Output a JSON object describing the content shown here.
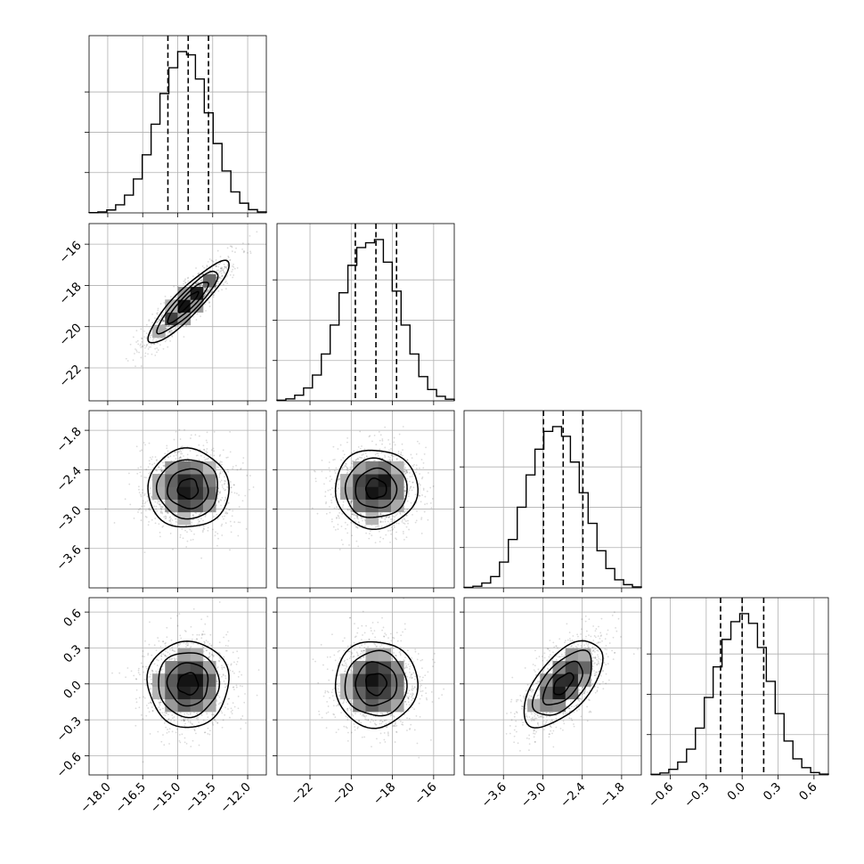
{
  "chart_data": {
    "type": "corner",
    "grid": true,
    "parameters": [
      {
        "range": [
          -18.8,
          -11.2
        ],
        "ticks": [
          -18.0,
          -16.5,
          -15.0,
          -13.5,
          -12.0
        ],
        "tick_labels": [
          "−18.0",
          "−16.5",
          "−15.0",
          "−13.5",
          "−12.0"
        ],
        "mean": -14.55,
        "std": 0.87,
        "quantiles": [
          -15.42,
          -14.55,
          -13.68
        ]
      },
      {
        "range": [
          -23.6,
          -15.0
        ],
        "ticks": [
          -22,
          -20,
          -18,
          -16
        ],
        "tick_labels": [
          "−22",
          "−20",
          "−18",
          "−16"
        ],
        "mean": -18.8,
        "std": 1.0,
        "quantiles": [
          -19.8,
          -18.8,
          -17.8
        ]
      },
      {
        "range": [
          -4.2,
          -1.5
        ],
        "ticks": [
          -3.6,
          -3.0,
          -2.4,
          -1.8
        ],
        "tick_labels": [
          "−3.6",
          "−3.0",
          "−2.4",
          "−1.8"
        ],
        "mean": -2.69,
        "std": 0.3,
        "quantiles": [
          -2.99,
          -2.69,
          -2.39
        ]
      },
      {
        "range": [
          -0.76,
          0.72
        ],
        "ticks": [
          -0.6,
          -0.3,
          0.0,
          0.3,
          0.6
        ],
        "tick_labels": [
          "−0.6",
          "−0.3",
          "0.0",
          "0.3",
          "0.6"
        ],
        "mean": 0.0,
        "std": 0.18,
        "quantiles": [
          -0.18,
          0.0,
          0.18
        ]
      }
    ],
    "histograms": [
      {
        "param": 0,
        "bin_edges": [
          -18.8,
          -18.42,
          -18.04,
          -17.66,
          -17.28,
          -16.9,
          -16.52,
          -16.14,
          -15.76,
          -15.38,
          -15.0,
          -14.62,
          -14.24,
          -13.86,
          -13.48,
          -13.1,
          -12.72,
          -12.34,
          -11.96,
          -11.58,
          -11.2
        ],
        "counts": [
          0.002,
          0.006,
          0.018,
          0.05,
          0.11,
          0.21,
          0.36,
          0.55,
          0.74,
          0.9,
          1.0,
          0.98,
          0.83,
          0.62,
          0.43,
          0.26,
          0.13,
          0.06,
          0.02,
          0.006
        ]
      },
      {
        "param": 1,
        "bin_edges": [
          -23.6,
          -23.17,
          -22.74,
          -22.31,
          -21.88,
          -21.45,
          -21.02,
          -20.59,
          -20.16,
          -19.73,
          -19.3,
          -18.87,
          -18.44,
          -18.01,
          -17.58,
          -17.15,
          -16.72,
          -16.29,
          -15.86,
          -15.43,
          -15.0
        ],
        "counts": [
          0.004,
          0.012,
          0.035,
          0.08,
          0.16,
          0.29,
          0.47,
          0.67,
          0.84,
          0.95,
          0.98,
          1.0,
          0.86,
          0.68,
          0.47,
          0.29,
          0.15,
          0.07,
          0.028,
          0.01
        ]
      },
      {
        "param": 2,
        "bin_edges": [
          -4.2,
          -4.065,
          -3.93,
          -3.795,
          -3.66,
          -3.525,
          -3.39,
          -3.255,
          -3.12,
          -2.985,
          -2.85,
          -2.715,
          -2.58,
          -2.445,
          -2.31,
          -2.175,
          -2.04,
          -1.905,
          -1.77,
          -1.635,
          -1.5
        ],
        "counts": [
          0.003,
          0.01,
          0.03,
          0.07,
          0.16,
          0.3,
          0.5,
          0.7,
          0.86,
          0.97,
          1.0,
          0.94,
          0.78,
          0.59,
          0.4,
          0.23,
          0.12,
          0.05,
          0.02,
          0.006
        ]
      },
      {
        "param": 3,
        "bin_edges": [
          -0.76,
          -0.686,
          -0.612,
          -0.538,
          -0.464,
          -0.39,
          -0.316,
          -0.242,
          -0.168,
          -0.094,
          -0.02,
          0.054,
          0.128,
          0.202,
          0.276,
          0.35,
          0.424,
          0.498,
          0.572,
          0.646,
          0.72
        ],
        "counts": [
          0.004,
          0.012,
          0.035,
          0.08,
          0.16,
          0.29,
          0.48,
          0.67,
          0.84,
          0.95,
          1.0,
          0.94,
          0.79,
          0.58,
          0.38,
          0.21,
          0.1,
          0.045,
          0.015,
          0.005
        ]
      }
    ],
    "pairs": [
      {
        "x_param": 0,
        "y_param": 1,
        "correlation": 0.9
      },
      {
        "x_param": 0,
        "y_param": 2,
        "correlation": 0.0
      },
      {
        "x_param": 1,
        "y_param": 2,
        "correlation": 0.0
      },
      {
        "x_param": 0,
        "y_param": 3,
        "correlation": 0.0
      },
      {
        "x_param": 1,
        "y_param": 3,
        "correlation": 0.0
      },
      {
        "x_param": 2,
        "y_param": 3,
        "correlation": 0.6
      }
    ],
    "contour_levels_sigma": [
      0.5,
      1.0,
      1.5,
      2.0
    ],
    "colors": {
      "line": "#000000",
      "grid": "#b0b0b0",
      "background": "#ffffff"
    }
  }
}
